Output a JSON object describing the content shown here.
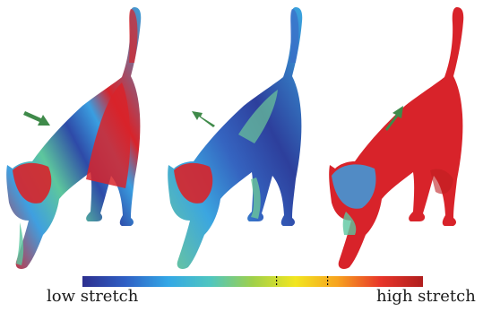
{
  "colorbar": {
    "low_label": "low stretch",
    "high_label": "high stretch",
    "stops": [
      "#2d2f8f",
      "#2f5fc4",
      "#33a7e6",
      "#4fc6c0",
      "#9fd04a",
      "#f2e620",
      "#f7a21f",
      "#e8362a",
      "#b01e1e"
    ],
    "markers": [
      0.57,
      0.72
    ]
  },
  "colors": {
    "stretch_low": "#2d3f9c",
    "stretch_mid_low": "#3aa6e0",
    "stretch_mid": "#5cc7a0",
    "stretch_high": "#d8232a",
    "arrow": "#3f8a4a"
  },
  "panels": [
    {
      "id": "left",
      "arrow_icon": "arrow-down-right-icon"
    },
    {
      "id": "middle",
      "arrow_icon": "arrow-up-left-icon"
    },
    {
      "id": "right",
      "arrow_icon": "arrow-up-right-icon"
    }
  ]
}
